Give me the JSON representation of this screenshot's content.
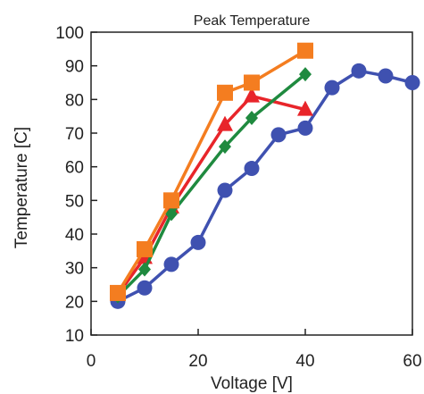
{
  "chart_data": {
    "type": "line",
    "title": "Peak Temperature",
    "xlabel": "Voltage [V]",
    "ylabel": "Temperature [C]",
    "xlim": [
      0,
      60
    ],
    "ylim": [
      10,
      100
    ],
    "xticks": [
      0,
      20,
      40,
      60
    ],
    "yticks": [
      10,
      20,
      30,
      40,
      50,
      60,
      70,
      80,
      90,
      100
    ],
    "grid": false,
    "legend": "none",
    "series": [
      {
        "color": "#3f51b0",
        "marker": "circle",
        "x": [
          5,
          10,
          15,
          20,
          25,
          30,
          35,
          40,
          45,
          50,
          55,
          60
        ],
        "y": [
          20,
          24,
          31,
          37.5,
          53,
          59.5,
          69.5,
          71.5,
          83.5,
          88.5,
          87,
          85
        ]
      },
      {
        "color": "#e8252a",
        "marker": "triangle",
        "x": [
          5,
          10,
          15,
          25,
          30,
          40
        ],
        "y": [
          22,
          33,
          48,
          72.5,
          81,
          77
        ]
      },
      {
        "color": "#1f8a3f",
        "marker": "diamond",
        "x": [
          5,
          10,
          15,
          25,
          30,
          40
        ],
        "y": [
          21.5,
          29.5,
          46,
          66,
          74.5,
          87.5
        ]
      },
      {
        "color": "#f47d20",
        "marker": "square",
        "x": [
          5,
          10,
          15,
          25,
          30,
          40
        ],
        "y": [
          22.5,
          35.5,
          50,
          82,
          85,
          94.5
        ]
      }
    ]
  }
}
